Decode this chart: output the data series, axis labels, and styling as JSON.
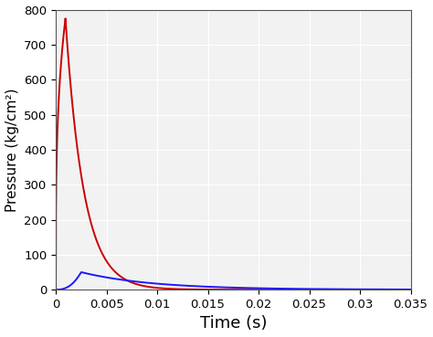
{
  "xlabel": "Time (s)",
  "ylabel": "Pressure (kg/cm²)",
  "xlim": [
    0,
    0.035
  ],
  "ylim": [
    0,
    800
  ],
  "xticks": [
    0,
    0.005,
    0.01,
    0.015,
    0.02,
    0.025,
    0.03,
    0.035
  ],
  "yticks": [
    0,
    100,
    200,
    300,
    400,
    500,
    600,
    700,
    800
  ],
  "red_color": "#cc0000",
  "blue_color": "#1a1aff",
  "red_peak_t": 0.00095,
  "red_peak_p": 775,
  "red_rise_shape": 0.3,
  "red_decay_tau": 0.0018,
  "blue_peak_t": 0.0025,
  "blue_peak_p": 50,
  "blue_rise_shape": 2.5,
  "blue_decay_tau": 0.007,
  "background_color": "#ffffff",
  "plot_bg_color": "#f2f2f2",
  "grid_color": "#ffffff",
  "line_width": 1.4,
  "xlabel_fontsize": 13,
  "ylabel_fontsize": 11,
  "tick_fontsize": 9.5
}
